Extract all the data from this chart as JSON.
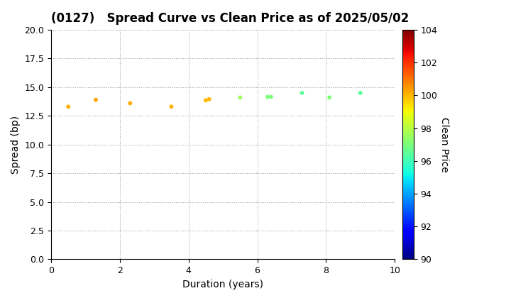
{
  "title": "(0127)   Spread Curve vs Clean Price as of 2025/05/02",
  "xlabel": "Duration (years)",
  "ylabel": "Spread (bp)",
  "colorbar_label": "Clean Price",
  "xlim": [
    0,
    10
  ],
  "ylim": [
    0.0,
    20.0
  ],
  "yticks": [
    0.0,
    2.5,
    5.0,
    7.5,
    10.0,
    12.5,
    15.0,
    17.5,
    20.0
  ],
  "xticks": [
    0,
    2,
    4,
    6,
    8,
    10
  ],
  "cbar_min": 90,
  "cbar_max": 104,
  "cbar_ticks": [
    90,
    92,
    94,
    96,
    98,
    100,
    102,
    104
  ],
  "points": [
    {
      "duration": 0.5,
      "spread": 13.3,
      "price": 100.2
    },
    {
      "duration": 1.3,
      "spread": 13.9,
      "price": 100.3
    },
    {
      "duration": 2.3,
      "spread": 13.6,
      "price": 100.2
    },
    {
      "duration": 3.5,
      "spread": 13.3,
      "price": 100.1
    },
    {
      "duration": 4.5,
      "spread": 13.85,
      "price": 100.0
    },
    {
      "duration": 4.6,
      "spread": 13.95,
      "price": 100.0
    },
    {
      "duration": 5.5,
      "spread": 14.1,
      "price": 97.5
    },
    {
      "duration": 6.3,
      "spread": 14.15,
      "price": 97.0
    },
    {
      "duration": 6.4,
      "spread": 14.15,
      "price": 97.0
    },
    {
      "duration": 7.3,
      "spread": 14.5,
      "price": 96.5
    },
    {
      "duration": 8.1,
      "spread": 14.1,
      "price": 97.0
    },
    {
      "duration": 9.0,
      "spread": 14.5,
      "price": 96.5
    }
  ],
  "marker_size": 18,
  "title_fontsize": 12,
  "label_fontsize": 10,
  "tick_fontsize": 9,
  "bg_color": "#ffffff",
  "grid_color": "#999999",
  "grid_style": "dotted",
  "cmap": "jet",
  "figure_width": 7.2,
  "figure_height": 4.2,
  "figure_dpi": 100
}
